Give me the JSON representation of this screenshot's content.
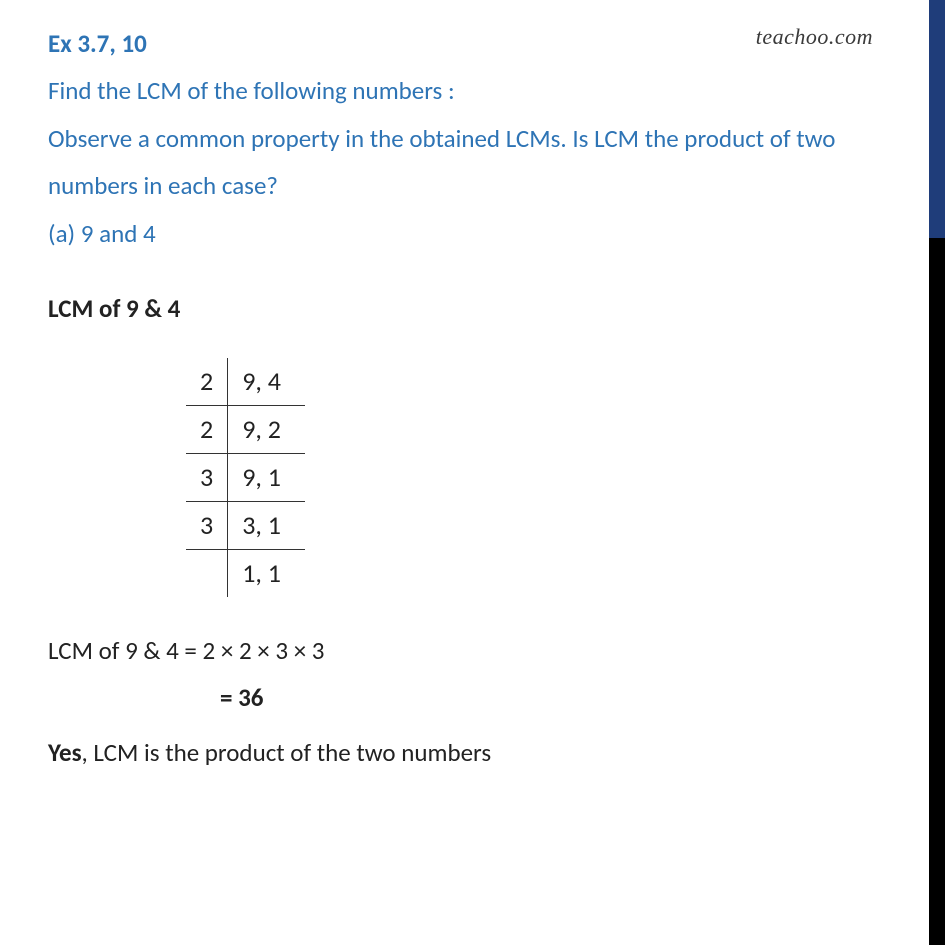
{
  "watermark": "teachoo.com",
  "heading": "Ex 3.7, 10",
  "question_text": "Find the LCM of the following numbers :\nObserve a common property in the obtained LCMs. Is LCM the product of two numbers in each case?",
  "sub_part": "(a) 9 and 4",
  "subheading": "LCM of 9 & 4",
  "division": {
    "rows": [
      {
        "divisor": "2",
        "values": "9, 4"
      },
      {
        "divisor": "2",
        "values": "9, 2"
      },
      {
        "divisor": "3",
        "values": "9, 1"
      },
      {
        "divisor": "3",
        "values": "3, 1"
      },
      {
        "divisor": "",
        "values": "1, 1"
      }
    ]
  },
  "calc_line": "LCM of 9 & 4 = 2 × 2 × 3 × 3",
  "result": "= 36",
  "conclusion_emph": "Yes",
  "conclusion_rest": ", LCM is the product of the two numbers",
  "colors": {
    "heading": "#2e74b5",
    "body_text": "#222222",
    "border_blue": "#1f3d7a",
    "border_black": "#000000",
    "background": "#ffffff"
  },
  "typography": {
    "heading_fontsize": 25,
    "body_fontsize": 25,
    "division_fontsize": 26,
    "watermark_fontsize": 22
  }
}
